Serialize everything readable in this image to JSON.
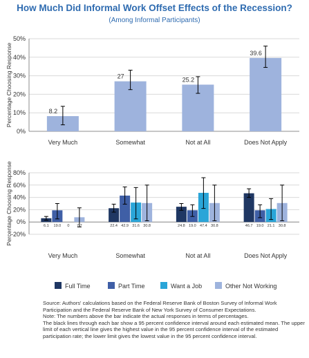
{
  "title": "How Much Did Informal Work Offset Effects of the Recession?",
  "subtitle": "(Among Informal Participants)",
  "chart_data": [
    {
      "type": "bar",
      "categories": [
        "Very Much",
        "Somewhat",
        "Not at All",
        "Does Not Apply"
      ],
      "values": [
        8.2,
        27,
        25.2,
        39.6
      ],
      "value_labels": [
        "8.2",
        "27",
        "25.2",
        "39.6"
      ],
      "error_bars": [
        [
          3.5,
          13.5
        ],
        [
          22.5,
          33
        ],
        [
          20.5,
          29.5
        ],
        [
          34.5,
          46
        ]
      ],
      "ylabel": "Percentage Choosing Response",
      "ylim": [
        0,
        50
      ],
      "yticks": [
        0,
        10,
        20,
        30,
        40,
        50
      ],
      "ytick_labels": [
        "0%",
        "10%",
        "20%",
        "30%",
        "40%",
        "50%"
      ],
      "grid": true,
      "color": "#9eb3dd"
    },
    {
      "type": "bar",
      "categories": [
        "Very Much",
        "Somewhat",
        "Not at All",
        "Does Not Apply"
      ],
      "series": [
        {
          "name": "Full Time",
          "color": "#1f3763",
          "values": [
            6.1,
            22.4,
            24.8,
            46.7
          ],
          "value_labels": [
            "6.1",
            "22.4",
            "24.8",
            "46.7"
          ],
          "error_bars": [
            [
              3,
              9
            ],
            [
              16,
              29
            ],
            [
              19,
              30
            ],
            [
              40,
              54
            ]
          ]
        },
        {
          "name": "Part Time",
          "color": "#3f5fa6",
          "values": [
            19.0,
            42.9,
            19.0,
            19.0
          ],
          "value_labels": [
            "19.0",
            "42.9",
            "19.0",
            "19.0"
          ],
          "error_bars": [
            [
              5,
              30
            ],
            [
              29,
              57
            ],
            [
              9,
              28
            ],
            [
              7,
              28
            ]
          ]
        },
        {
          "name": "Want a Job",
          "color": "#2aa5d8",
          "values": [
            0,
            31.6,
            47.4,
            21.1
          ],
          "value_labels": [
            "0",
            "31.6",
            "47.4",
            "21.1"
          ],
          "error_bars": [
            null,
            [
              5,
              56
            ],
            [
              22,
              72
            ],
            [
              4,
              38
            ]
          ]
        },
        {
          "name": "Other Not Working",
          "color": "#9eb3dd",
          "values": [
            7.7,
            30.8,
            30.8,
            30.8
          ],
          "value_labels": [
            "7.7",
            "30.8",
            "30.8",
            "30.8"
          ],
          "error_bars": [
            [
              -8,
              23
            ],
            [
              2,
              60
            ],
            [
              2,
              60
            ],
            [
              2,
              60
            ]
          ]
        }
      ],
      "ylabel": "Percentage Choosing Response",
      "ylim": [
        -20,
        80
      ],
      "yticks": [
        -20,
        0,
        20,
        40,
        60,
        80
      ],
      "ytick_labels": [
        "-20%",
        "0%",
        "20%",
        "40%",
        "60%",
        "80%"
      ],
      "grid": true,
      "legend": "bottom"
    }
  ],
  "footnote": [
    "Source: Authors' calculations based on the Federal Reserve Bank of Boston Survey of Informal Work Participation and the Federal Reserve Bank of New York Survey of Consumer Expectations.",
    "Note: The numbers above the bar indicate the actual responses in terms of percentages.",
    "The black lines through each bar show a 95 percent confidence interval around each estimated mean. The upper limit of each vertical line gives the highest value in the 95 percent confidence interval of the estimated participation rate; the lower limit gives the lowest value in the 95 percent confidence interval."
  ]
}
